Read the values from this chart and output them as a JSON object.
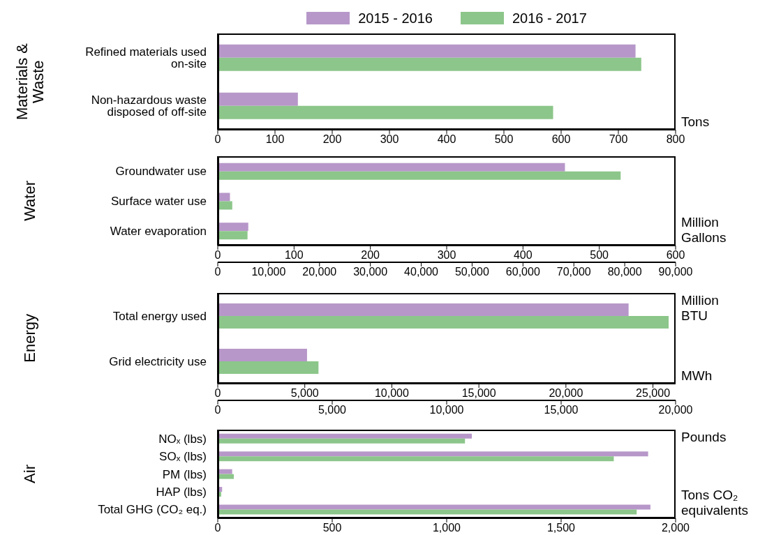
{
  "chart_data": [
    {
      "type": "bar",
      "orientation": "horizontal",
      "ylabel": "Materials & Waste",
      "legend": "top",
      "categories": [
        "Refined materials used on-site",
        "Non-hazardous waste disposed of off-site"
      ],
      "series": [
        {
          "name": "2015 - 2016",
          "color": "#b797c9",
          "values": [
            730,
            140
          ]
        },
        {
          "name": "2016 - 2017",
          "color": "#8cc68a",
          "values": [
            740,
            586
          ]
        }
      ],
      "xlim": [
        0,
        800
      ],
      "xticks": [
        0,
        100,
        200,
        300,
        400,
        500,
        600,
        700,
        800
      ],
      "annotations": [
        "Tons"
      ]
    },
    {
      "type": "bar",
      "orientation": "horizontal",
      "ylabel": "Water",
      "categories": [
        "Groundwater use",
        "Surface water use",
        "Water evaporation"
      ],
      "series": [
        {
          "color": "#b797c9",
          "values": [
            455,
            16,
            40
          ]
        },
        {
          "color": "#8cc68a",
          "values": [
            528,
            19,
            39
          ]
        }
      ],
      "xlim": [
        0,
        600
      ],
      "xticks": [
        0,
        100,
        200,
        300,
        400,
        500,
        600
      ],
      "x2lim": [
        0,
        90000
      ],
      "x2ticks": [
        0,
        {
          "value": 10000,
          "label": "10,000"
        },
        {
          "value": 20000,
          "label": "20,000"
        },
        {
          "value": 30000,
          "label": "30,000"
        },
        {
          "value": 40000,
          "label": "40,000"
        },
        {
          "value": 50000,
          "label": "50,000"
        },
        {
          "value": 60000,
          "label": "60,000"
        },
        {
          "value": 70000,
          "label": "70,000"
        },
        {
          "value": 80000,
          "label": "80,000"
        },
        {
          "value": 90000,
          "label": "90,000"
        }
      ],
      "annotations": [
        "Million Gallons"
      ]
    },
    {
      "type": "bar",
      "orientation": "horizontal",
      "ylabel": "Energy",
      "categories": [
        "Total energy used",
        "Grid electricity use"
      ],
      "series": [
        {
          "color": "#b797c9",
          "values": [
            23600,
            null
          ]
        },
        {
          "color": "#8cc68a",
          "values": [
            25900,
            null
          ]
        },
        {
          "color": "#b797c9",
          "values": [
            null,
            3900
          ],
          "axis": "x2"
        },
        {
          "color": "#8cc68a",
          "values": [
            null,
            4400
          ],
          "axis": "x2"
        }
      ],
      "xlim": [
        0,
        26300
      ],
      "xticks": [
        0,
        {
          "value": 5000,
          "label": "5,000"
        },
        {
          "value": 10000,
          "label": "10,000"
        },
        {
          "value": 15000,
          "label": "15,000"
        },
        {
          "value": 20000,
          "label": "20,000"
        },
        {
          "value": 25000,
          "label": "25,000"
        }
      ],
      "x2lim": [
        0,
        20000
      ],
      "x2ticks": [
        0,
        {
          "value": 5000,
          "label": "5,000"
        },
        {
          "value": 10000,
          "label": "10,000"
        },
        {
          "value": 15000,
          "label": "15,000"
        },
        {
          "value": 20000,
          "label": "20,000"
        }
      ],
      "annotations": [
        "Million BTU",
        "MWh"
      ]
    },
    {
      "type": "bar",
      "orientation": "horizontal",
      "ylabel": "Air",
      "categories": [
        "NOₓ (lbs)",
        "SOₓ (lbs)",
        "PM (lbs)",
        "HAP (lbs)",
        "Total GHG (CO₂ eq.)"
      ],
      "series": [
        {
          "color": "#b797c9",
          "values": [
            1110,
            1880,
            63,
            19,
            1890
          ]
        },
        {
          "color": "#8cc68a",
          "values": [
            1080,
            1730,
            70,
            15,
            1830
          ]
        }
      ],
      "xlim": [
        0,
        2000
      ],
      "xticks": [
        0,
        500,
        {
          "value": 1000,
          "label": "1,000"
        },
        {
          "value": 1500,
          "label": "1,500"
        },
        {
          "value": 2000,
          "label": "2,000"
        }
      ],
      "annotations": [
        "Pounds",
        "Tons CO₂ equivalents"
      ]
    }
  ]
}
